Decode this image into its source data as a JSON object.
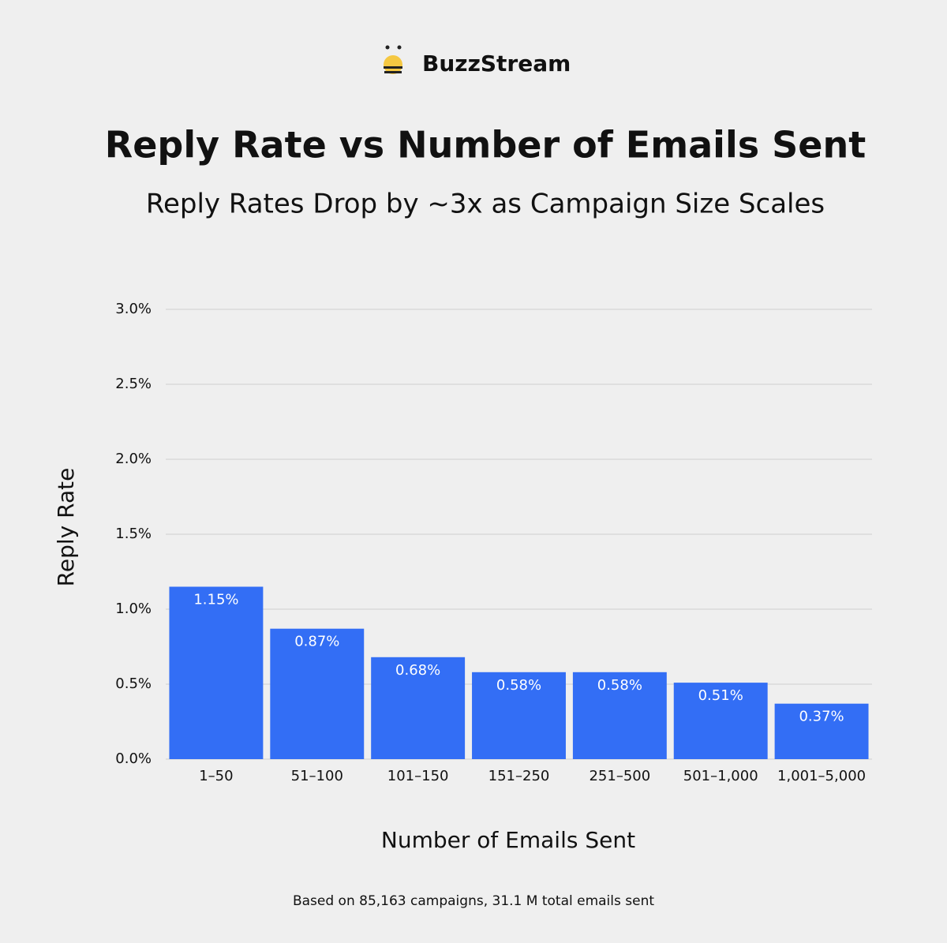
{
  "chart_data": {
    "type": "bar",
    "brand": "BuzzStream",
    "title": "Reply Rate vs Number of Emails Sent",
    "subtitle": "Reply Rates Drop by ~3x as Campaign Size Scales",
    "y_label": "Reply Rate",
    "x_label": "Number of Emails Sent",
    "footnote": "Based on 85,163 campaigns, 31.1 M total emails sent",
    "categories": [
      "1–50",
      "51–100",
      "101–150",
      "151–250",
      "251–500",
      "501–1,000",
      "1,001–5,000"
    ],
    "values": [
      1.15,
      0.87,
      0.68,
      0.58,
      0.58,
      0.51,
      0.37
    ],
    "value_labels": [
      "1.15%",
      "0.87%",
      "0.68%",
      "0.58%",
      "0.58%",
      "0.51%",
      "0.37%"
    ],
    "color": "#336ef5",
    "ylim": [
      0,
      3
    ],
    "yticks": [
      {
        "value": 0,
        "label": "0.0%"
      },
      {
        "value": 0.5,
        "label": "0.5%"
      },
      {
        "value": 1,
        "label": "1.0%"
      },
      {
        "value": 1.5,
        "label": "1.5%"
      },
      {
        "value": 2,
        "label": "2.0%"
      },
      {
        "value": 2.5,
        "label": "2.5%"
      },
      {
        "value": 3,
        "label": "3.0%"
      }
    ],
    "grid": true
  }
}
